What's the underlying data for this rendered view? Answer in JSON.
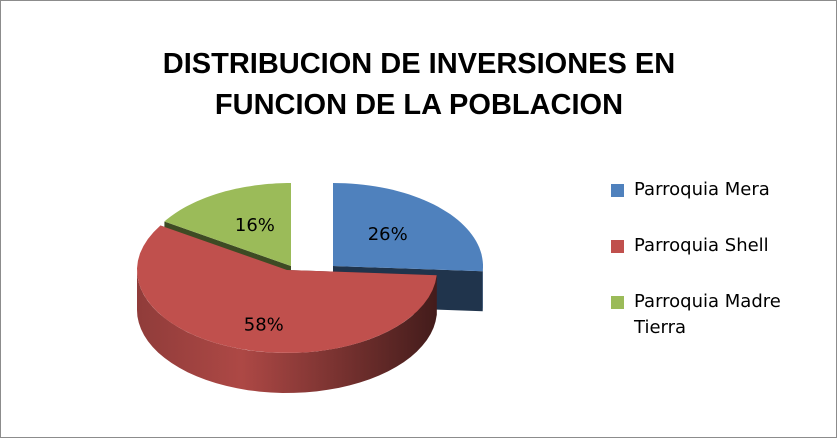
{
  "chart_data": {
    "type": "pie3d",
    "title": [
      "DISTRIBUCION DE INVERSIONES EN",
      "FUNCION DE  LA POBLACION"
    ],
    "categories": [
      "Parroquia Mera",
      "Parroquia Shell",
      "Parroquia Madre Tierra"
    ],
    "values": [
      26,
      58,
      16
    ],
    "value_labels": [
      "26%",
      "58%",
      "16%"
    ],
    "colors": [
      "#4f81bd",
      "#c0504d",
      "#9bbb59"
    ],
    "legend": "right"
  }
}
